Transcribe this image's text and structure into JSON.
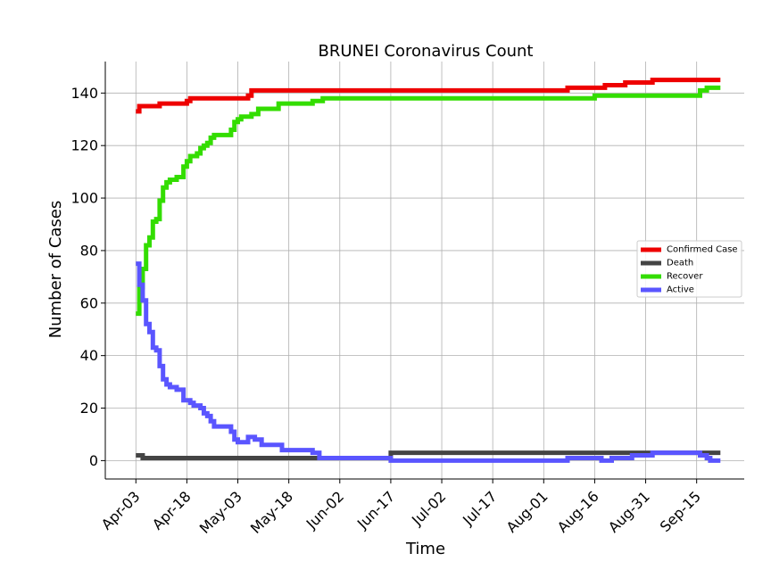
{
  "chart_data": {
    "type": "line",
    "title": "BRUNEI Coronavirus Count",
    "xlabel": "Time",
    "ylabel": "Number of Cases",
    "x_start": "2020-04-03",
    "x_end": "2020-09-22",
    "xlim": [
      "2020-03-25",
      "2020-09-29"
    ],
    "ylim": [
      -7,
      152
    ],
    "grid": true,
    "legend_position": "right",
    "x_ticks": [
      {
        "date": "2020-04-03",
        "label": "Apr-03"
      },
      {
        "date": "2020-04-18",
        "label": "Apr-18"
      },
      {
        "date": "2020-05-03",
        "label": "May-03"
      },
      {
        "date": "2020-05-18",
        "label": "May-18"
      },
      {
        "date": "2020-06-02",
        "label": "Jun-02"
      },
      {
        "date": "2020-06-17",
        "label": "Jun-17"
      },
      {
        "date": "2020-07-02",
        "label": "Jul-02"
      },
      {
        "date": "2020-07-17",
        "label": "Jul-17"
      },
      {
        "date": "2020-08-01",
        "label": "Aug-01"
      },
      {
        "date": "2020-08-16",
        "label": "Aug-16"
      },
      {
        "date": "2020-08-31",
        "label": "Aug-31"
      },
      {
        "date": "2020-09-15",
        "label": "Sep-15"
      }
    ],
    "y_ticks": [
      0,
      20,
      40,
      60,
      80,
      100,
      120,
      140
    ],
    "series": [
      {
        "name": "Confirmed Case",
        "color": "#ee0000",
        "points": [
          [
            "2020-04-03",
            133
          ],
          [
            "2020-04-04",
            135
          ],
          [
            "2020-04-10",
            136
          ],
          [
            "2020-04-18",
            137
          ],
          [
            "2020-04-19",
            138
          ],
          [
            "2020-05-06",
            139
          ],
          [
            "2020-05-07",
            141
          ],
          [
            "2020-08-08",
            142
          ],
          [
            "2020-08-19",
            143
          ],
          [
            "2020-08-25",
            144
          ],
          [
            "2020-09-02",
            145
          ],
          [
            "2020-09-22",
            145
          ]
        ]
      },
      {
        "name": "Death",
        "color": "#444444",
        "points": [
          [
            "2020-04-03",
            2
          ],
          [
            "2020-04-05",
            1
          ],
          [
            "2020-06-17",
            3
          ],
          [
            "2020-09-22",
            3
          ]
        ]
      },
      {
        "name": "Recover",
        "color": "#33dd00",
        "points": [
          [
            "2020-04-03",
            56
          ],
          [
            "2020-04-04",
            66
          ],
          [
            "2020-04-05",
            73
          ],
          [
            "2020-04-06",
            82
          ],
          [
            "2020-04-07",
            85
          ],
          [
            "2020-04-08",
            91
          ],
          [
            "2020-04-09",
            92
          ],
          [
            "2020-04-10",
            99
          ],
          [
            "2020-04-11",
            104
          ],
          [
            "2020-04-12",
            106
          ],
          [
            "2020-04-13",
            107
          ],
          [
            "2020-04-15",
            108
          ],
          [
            "2020-04-17",
            112
          ],
          [
            "2020-04-18",
            114
          ],
          [
            "2020-04-19",
            116
          ],
          [
            "2020-04-21",
            117
          ],
          [
            "2020-04-22",
            119
          ],
          [
            "2020-04-23",
            120
          ],
          [
            "2020-04-24",
            121
          ],
          [
            "2020-04-25",
            123
          ],
          [
            "2020-04-26",
            124
          ],
          [
            "2020-05-01",
            126
          ],
          [
            "2020-05-02",
            129
          ],
          [
            "2020-05-03",
            130
          ],
          [
            "2020-05-04",
            131
          ],
          [
            "2020-05-07",
            132
          ],
          [
            "2020-05-09",
            134
          ],
          [
            "2020-05-15",
            136
          ],
          [
            "2020-05-25",
            137
          ],
          [
            "2020-05-28",
            138
          ],
          [
            "2020-08-16",
            139
          ],
          [
            "2020-09-16",
            141
          ],
          [
            "2020-09-18",
            142
          ],
          [
            "2020-09-22",
            142
          ]
        ]
      },
      {
        "name": "Active",
        "color": "#5a55ff",
        "points": [
          [
            "2020-04-03",
            75
          ],
          [
            "2020-04-04",
            67
          ],
          [
            "2020-04-05",
            61
          ],
          [
            "2020-04-06",
            52
          ],
          [
            "2020-04-07",
            49
          ],
          [
            "2020-04-08",
            43
          ],
          [
            "2020-04-09",
            42
          ],
          [
            "2020-04-10",
            36
          ],
          [
            "2020-04-11",
            31
          ],
          [
            "2020-04-12",
            29
          ],
          [
            "2020-04-13",
            28
          ],
          [
            "2020-04-15",
            27
          ],
          [
            "2020-04-17",
            23
          ],
          [
            "2020-04-19",
            22
          ],
          [
            "2020-04-20",
            21
          ],
          [
            "2020-04-22",
            20
          ],
          [
            "2020-04-23",
            18
          ],
          [
            "2020-04-24",
            17
          ],
          [
            "2020-04-25",
            15
          ],
          [
            "2020-04-26",
            13
          ],
          [
            "2020-05-01",
            11
          ],
          [
            "2020-05-02",
            8
          ],
          [
            "2020-05-03",
            7
          ],
          [
            "2020-05-05",
            7
          ],
          [
            "2020-05-06",
            9
          ],
          [
            "2020-05-08",
            8
          ],
          [
            "2020-05-10",
            6
          ],
          [
            "2020-05-16",
            4
          ],
          [
            "2020-05-25",
            3
          ],
          [
            "2020-05-27",
            1
          ],
          [
            "2020-06-17",
            0
          ],
          [
            "2020-08-08",
            1
          ],
          [
            "2020-08-18",
            0
          ],
          [
            "2020-08-21",
            1
          ],
          [
            "2020-08-27",
            2
          ],
          [
            "2020-09-02",
            3
          ],
          [
            "2020-09-16",
            2
          ],
          [
            "2020-09-18",
            1
          ],
          [
            "2020-09-19",
            0
          ],
          [
            "2020-09-22",
            0
          ]
        ]
      }
    ]
  }
}
